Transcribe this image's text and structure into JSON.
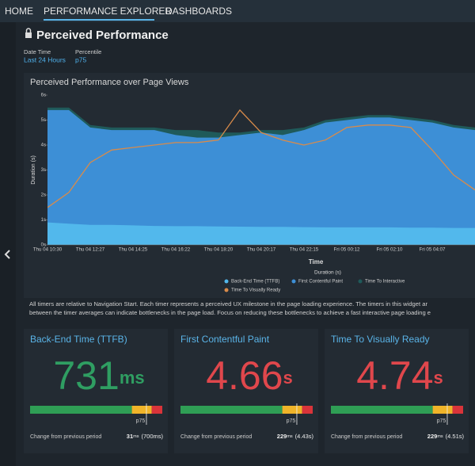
{
  "nav": {
    "items": [
      "HOME",
      "PERFORMANCE EXPLORER",
      "DASHBOARDS"
    ]
  },
  "header": {
    "title": "Perceived Performance",
    "filters": [
      {
        "label": "Date Time",
        "value": "Last 24 Hours"
      },
      {
        "label": "Percentile",
        "value": "p75"
      }
    ]
  },
  "chart": {
    "type": "area",
    "title": "Perceived Performance over Page Views",
    "x_label": "Time",
    "y_label": "Duration (s)",
    "legend_title": "Duration (s)",
    "categories": [
      "Thu 04 10:30",
      null,
      "Thu 04 12:27",
      null,
      "Thu 04 14:25",
      null,
      "Thu 04 16:22",
      null,
      "Thu 04 18:20",
      null,
      "Thu 04 20:17",
      null,
      "Thu 04 22:15",
      null,
      "Fri 05 00:12",
      null,
      "Fri 05 02:10",
      null,
      "Fri 05 04:07",
      null,
      null
    ],
    "ylim": [
      0,
      6
    ],
    "yticks": [
      {
        "value": 0,
        "label": "0s"
      },
      {
        "value": 1,
        "label": "1s"
      },
      {
        "value": 2,
        "label": "2s"
      },
      {
        "value": 3,
        "label": "3s"
      },
      {
        "value": 4,
        "label": "4s"
      },
      {
        "value": 5,
        "label": "5s"
      },
      {
        "value": 6,
        "label": "6s"
      }
    ],
    "series": [
      {
        "name": "Back-End Time (TTFB)",
        "color": "#52b8ec",
        "kind": "area",
        "values": [
          0.9,
          0.85,
          0.8,
          0.8,
          0.78,
          0.76,
          0.75,
          0.75,
          0.74,
          0.73,
          0.72,
          0.72,
          0.71,
          0.7,
          0.7,
          0.7,
          0.7,
          0.69,
          0.69,
          0.68,
          0.68
        ]
      },
      {
        "name": "First Contentful Paint",
        "color": "#3d8fd6",
        "kind": "area",
        "values": [
          5.4,
          5.4,
          4.7,
          4.6,
          4.6,
          4.6,
          4.4,
          4.3,
          4.3,
          4.4,
          4.5,
          4.4,
          4.6,
          4.9,
          5.0,
          5.1,
          5.1,
          5.0,
          4.9,
          4.7,
          4.6
        ]
      },
      {
        "name": "Time To Interactive",
        "color": "#1f5a5a",
        "kind": "area",
        "values": [
          5.5,
          5.5,
          4.8,
          4.7,
          4.7,
          4.7,
          4.6,
          4.6,
          4.5,
          4.5,
          4.6,
          4.6,
          4.7,
          5.0,
          5.1,
          5.2,
          5.2,
          5.1,
          5.0,
          4.8,
          4.7
        ]
      },
      {
        "name": "Time To Visually Ready",
        "color": "#d98b4a",
        "kind": "line",
        "values": [
          1.5,
          2.1,
          3.3,
          3.8,
          3.9,
          4.0,
          4.1,
          4.1,
          4.2,
          5.4,
          4.5,
          4.2,
          4.0,
          4.2,
          4.7,
          4.8,
          4.8,
          4.7,
          3.8,
          2.8,
          2.2
        ]
      }
    ]
  },
  "note": [
    "All timers are relative to Navigation Start. Each timer represents a perceived UX milestone in the page loading experience. The timers in this widget ar",
    "between the timer averages can indicate bottlenecks in the page load. Focus on reducing these bottlenecks to achieve a fast interactive page loading e"
  ],
  "cards": [
    {
      "title": "Back-End Time (TTFB)",
      "value": "731",
      "unit": "ms",
      "color": "#2f9e62",
      "percentile": "p75",
      "change_label": "Change from previous period",
      "change_value": "31",
      "change_unit": "ms",
      "previous": "(700ms)"
    },
    {
      "title": "First Contentful Paint",
      "value": "4.66",
      "unit": "s",
      "color": "#e0474c",
      "percentile": "p75",
      "change_label": "Change from previous period",
      "change_value": "229",
      "change_unit": "ms",
      "previous": "(4.43s)"
    },
    {
      "title": "Time To Visually Ready",
      "value": "4.74",
      "unit": "s",
      "color": "#e0474c",
      "percentile": "p75",
      "change_label": "Change from previous period",
      "change_value": "229",
      "change_unit": "ms",
      "previous": "(4.51s)"
    }
  ]
}
